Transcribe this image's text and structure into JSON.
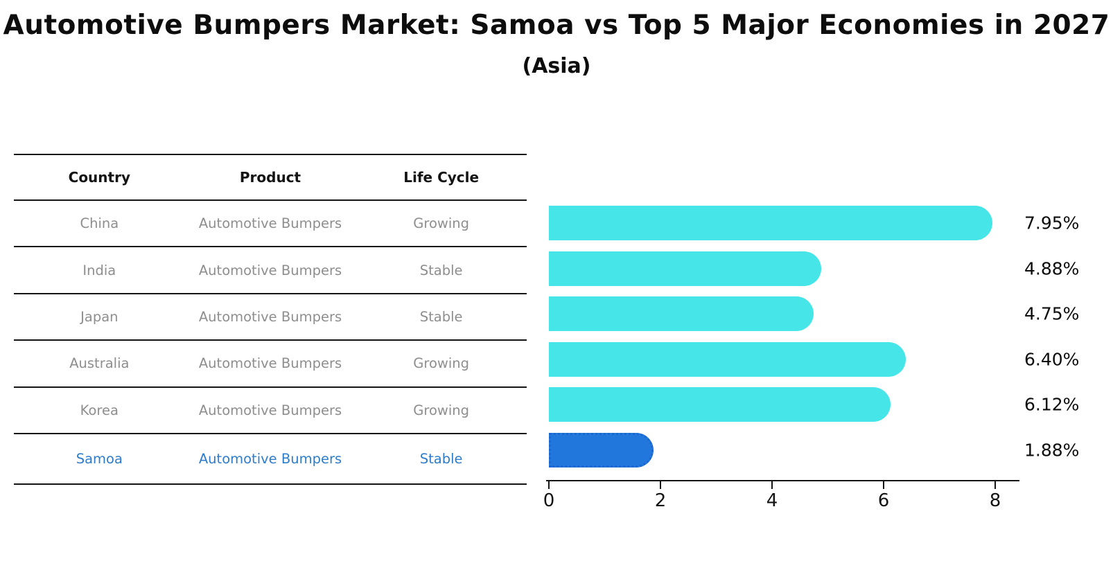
{
  "title": "Automotive Bumpers Market: Samoa vs Top 5 Major Economies in 2027",
  "subtitle": "(Asia)",
  "table": {
    "headers": [
      "Country",
      "Product",
      "Life Cycle"
    ],
    "rows": [
      {
        "country": "China",
        "product": "Automotive Bumpers",
        "life_cycle": "Growing",
        "highlight": false
      },
      {
        "country": "India",
        "product": "Automotive Bumpers",
        "life_cycle": "Stable",
        "highlight": false
      },
      {
        "country": "Japan",
        "product": "Automotive Bumpers",
        "life_cycle": "Stable",
        "highlight": false
      },
      {
        "country": "Australia",
        "product": "Automotive Bumpers",
        "life_cycle": "Growing",
        "highlight": false
      },
      {
        "country": "Korea",
        "product": "Automotive Bumpers",
        "life_cycle": "Growing",
        "highlight": false
      },
      {
        "country": "Samoa",
        "product": "Automotive Bumpers",
        "life_cycle": "Stable",
        "highlight": true
      }
    ]
  },
  "chart_data": {
    "type": "bar",
    "orientation": "horizontal",
    "title": "Automotive Bumpers Market: Samoa vs Top 5 Major Economies in 2027",
    "subtitle": "(Asia)",
    "categories": [
      "China",
      "India",
      "Japan",
      "Australia",
      "Korea",
      "Samoa"
    ],
    "values": [
      7.95,
      4.88,
      4.75,
      6.4,
      6.12,
      1.88
    ],
    "value_labels": [
      "7.95%",
      "4.88%",
      "4.75%",
      "6.40%",
      "6.12%",
      "1.88%"
    ],
    "xlabel": "",
    "ylabel": "",
    "xlim": [
      0,
      8
    ],
    "x_ticks": [
      0,
      2,
      4,
      6,
      8
    ],
    "grid": false,
    "legend": false,
    "highlight_index": 5
  },
  "colors": {
    "bar": "#46E5E8",
    "highlight_bar": "#2277DD",
    "highlight_border": "#1B66D0",
    "highlight_text": "#2E7DCC",
    "table_text": "#8E8E8E",
    "axis_text": "#141414"
  }
}
